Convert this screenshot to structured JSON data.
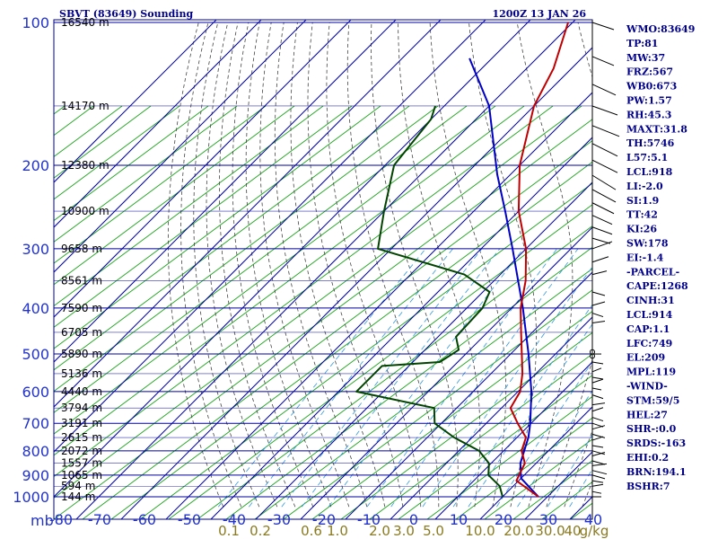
{
  "chart_data": {
    "type": "skew-t",
    "title": "SBVT (83649) Sounding",
    "datetime": "1200Z 13 JAN 26",
    "pressure_ticks": [
      100,
      200,
      300,
      400,
      500,
      600,
      700,
      800,
      900,
      1000
    ],
    "pressure_unit": "mb",
    "temp_ticks": [
      -80,
      -70,
      -60,
      -50,
      -40,
      -30,
      -20,
      -10,
      0,
      10,
      20,
      30,
      40
    ],
    "mixing_ratio_labels": [
      "0.1",
      "0.2",
      "0.6",
      "1.0",
      "2.0",
      "3.0",
      "5.0",
      "10.0",
      "20.0",
      "30.0",
      "40",
      "g/kg"
    ],
    "height_labels": [
      {
        "p": 100,
        "label": "16540 m"
      },
      {
        "p": 150,
        "label": "14170 m"
      },
      {
        "p": 200,
        "label": "12380 m"
      },
      {
        "p": 250,
        "label": "10900 m"
      },
      {
        "p": 300,
        "label": "9658 m"
      },
      {
        "p": 350,
        "label": "8561 m"
      },
      {
        "p": 400,
        "label": "7590 m"
      },
      {
        "p": 450,
        "label": "6705 m"
      },
      {
        "p": 500,
        "label": "5890 m"
      },
      {
        "p": 550,
        "label": "5136 m"
      },
      {
        "p": 600,
        "label": "4440 m"
      },
      {
        "p": 650,
        "label": "3794 m"
      },
      {
        "p": 700,
        "label": "3191 m"
      },
      {
        "p": 750,
        "label": "2615 m"
      },
      {
        "p": 800,
        "label": "2072 m"
      },
      {
        "p": 850,
        "label": "1557 m"
      },
      {
        "p": 900,
        "label": "1065 m"
      },
      {
        "p": 950,
        "label": "594 m"
      },
      {
        "p": 1000,
        "label": "144 m"
      }
    ],
    "temperature_profile": [
      {
        "p": 1000,
        "t": 28.0
      },
      {
        "p": 925,
        "t": 19.5
      },
      {
        "p": 850,
        "t": 17.5
      },
      {
        "p": 800,
        "t": 14.0
      },
      {
        "p": 750,
        "t": 12.0
      },
      {
        "p": 700,
        "t": 7.0
      },
      {
        "p": 650,
        "t": 2.0
      },
      {
        "p": 600,
        "t": 0.5
      },
      {
        "p": 550,
        "t": -3.0
      },
      {
        "p": 500,
        "t": -7.5
      },
      {
        "p": 450,
        "t": -12.5
      },
      {
        "p": 400,
        "t": -18.0
      },
      {
        "p": 350,
        "t": -23.0
      },
      {
        "p": 300,
        "t": -30.0
      },
      {
        "p": 250,
        "t": -40.0
      },
      {
        "p": 200,
        "t": -50.0
      },
      {
        "p": 150,
        "t": -60.0
      },
      {
        "p": 125,
        "t": -64.0
      },
      {
        "p": 100,
        "t": -71.0
      }
    ],
    "dewpoint_profile": [
      {
        "p": 1000,
        "t": 20.0
      },
      {
        "p": 950,
        "t": 17.0
      },
      {
        "p": 900,
        "t": 12.0
      },
      {
        "p": 850,
        "t": 9.5
      },
      {
        "p": 800,
        "t": 4.5
      },
      {
        "p": 750,
        "t": -4.0
      },
      {
        "p": 700,
        "t": -11.5
      },
      {
        "p": 650,
        "t": -15.0
      },
      {
        "p": 600,
        "t": -36.0
      },
      {
        "p": 530,
        "t": -36.0
      },
      {
        "p": 520,
        "t": -24.0
      },
      {
        "p": 490,
        "t": -22.5
      },
      {
        "p": 460,
        "t": -26.0
      },
      {
        "p": 400,
        "t": -26.5
      },
      {
        "p": 370,
        "t": -28.5
      },
      {
        "p": 340,
        "t": -38.0
      },
      {
        "p": 300,
        "t": -63.0
      },
      {
        "p": 250,
        "t": -70.0
      },
      {
        "p": 200,
        "t": -78.0
      },
      {
        "p": 160,
        "t": -80.0
      },
      {
        "p": 150,
        "t": -82.0
      }
    ],
    "parcel_profile": [
      {
        "p": 1000,
        "t": 28.0
      },
      {
        "p": 914,
        "t": 20.0
      },
      {
        "p": 850,
        "t": 16.5
      },
      {
        "p": 749,
        "t": 12.5
      },
      {
        "p": 700,
        "t": 9.8
      },
      {
        "p": 600,
        "t": 3.0
      },
      {
        "p": 500,
        "t": -6.0
      },
      {
        "p": 400,
        "t": -17.5
      },
      {
        "p": 300,
        "t": -33.0
      },
      {
        "p": 250,
        "t": -43.0
      },
      {
        "p": 209,
        "t": -53.0
      },
      {
        "p": 150,
        "t": -70.0
      },
      {
        "p": 119,
        "t": -85.0
      }
    ],
    "indices": [
      "WMO:83649",
      "TP:81",
      "MW:37",
      "FRZ:567",
      "WB0:673",
      "PW:1.57",
      "RH:45.3",
      "MAXT:31.8",
      "TH:5746",
      "L57:5.1",
      "LCL:918",
      "LI:-2.0",
      "SI:1.9",
      "TT:42",
      "KI:26",
      "SW:178",
      "EI:-1.4",
      "-PARCEL-",
      "CAPE:1268",
      "CINH:31",
      "LCL:914",
      "CAP:1.1",
      "LFC:749",
      "EL:209",
      "MPL:119",
      "-WIND-",
      "STM:59/5",
      "HEL:27",
      "SHR-:0.0",
      "SRDS:-163",
      "EHI:0.2",
      "BRN:194.1",
      "BSHR:7"
    ],
    "colors": {
      "isobar": "#0000a0",
      "isotherm": "#0000a0",
      "dry_adiabat": "#1aa31a",
      "moist_adiabat": "#444444",
      "mixing_ratio": "#3399dd",
      "temperature": "#c00000",
      "dewpoint": "#004400",
      "parcel": "#0000c8",
      "text": "#00008b"
    }
  }
}
